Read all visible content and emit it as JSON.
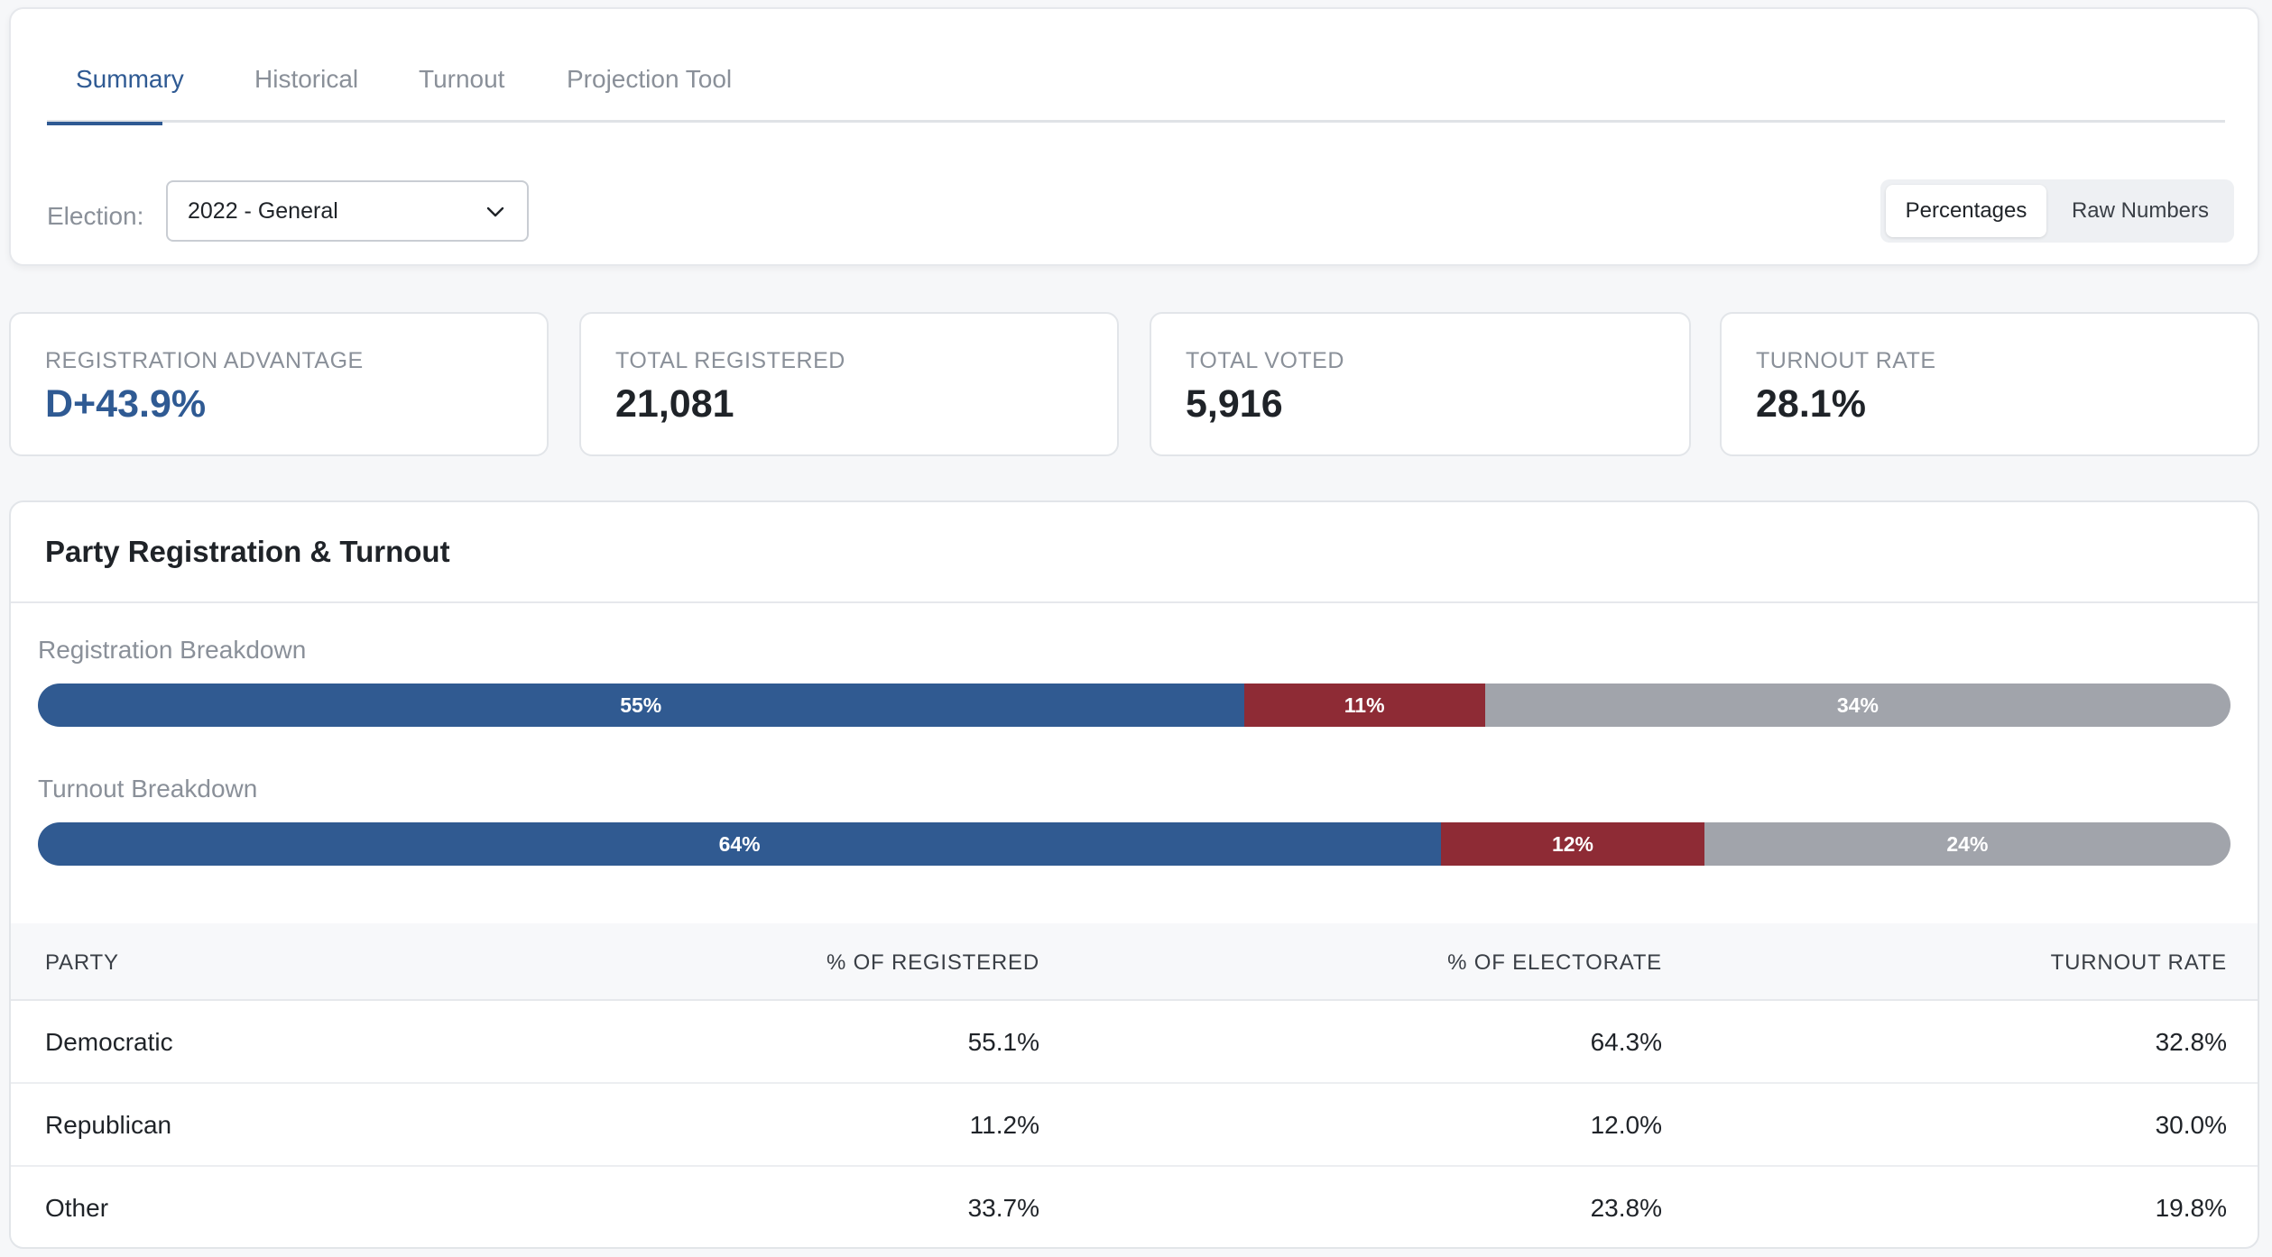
{
  "tabs": [
    {
      "label": "Summary",
      "active": true
    },
    {
      "label": "Historical",
      "active": false
    },
    {
      "label": "Turnout",
      "active": false
    },
    {
      "label": "Projection Tool",
      "active": false
    }
  ],
  "election": {
    "label": "Election:",
    "selected": "2022 - General"
  },
  "view_toggle": {
    "options": [
      "Percentages",
      "Raw Numbers"
    ],
    "selected": "Percentages"
  },
  "stats": [
    {
      "label": "REGISTRATION ADVANTAGE",
      "value": "D+43.9%"
    },
    {
      "label": "TOTAL REGISTERED",
      "value": "21,081"
    },
    {
      "label": "TOTAL VOTED",
      "value": "5,916"
    },
    {
      "label": "TURNOUT RATE",
      "value": "28.1%"
    }
  ],
  "panel": {
    "title": "Party Registration & Turnout",
    "registration_breakdown": {
      "label": "Registration Breakdown",
      "segments": [
        {
          "party": "Democratic",
          "share": 55,
          "text": "55%"
        },
        {
          "party": "Republican",
          "share": 11,
          "text": "11%"
        },
        {
          "party": "Other",
          "share": 34,
          "text": "34%"
        }
      ]
    },
    "turnout_breakdown": {
      "label": "Turnout Breakdown",
      "segments": [
        {
          "party": "Democratic",
          "share": 64,
          "text": "64%"
        },
        {
          "party": "Republican",
          "share": 12,
          "text": "12%"
        },
        {
          "party": "Other",
          "share": 24,
          "text": "24%"
        }
      ]
    }
  },
  "table": {
    "headers": [
      "PARTY",
      "% OF REGISTERED",
      "% OF ELECTORATE",
      "TURNOUT RATE"
    ],
    "rows": [
      [
        "Democratic",
        "55.1%",
        "64.3%",
        "32.8%"
      ],
      [
        "Republican",
        "11.2%",
        "12.0%",
        "30.0%"
      ],
      [
        "Other",
        "33.7%",
        "23.8%",
        "19.8%"
      ]
    ]
  },
  "colors": {
    "accent": "#2f5a93",
    "democratic": "#305a91",
    "republican": "#8e2b35",
    "other": "#a1a4ab"
  }
}
